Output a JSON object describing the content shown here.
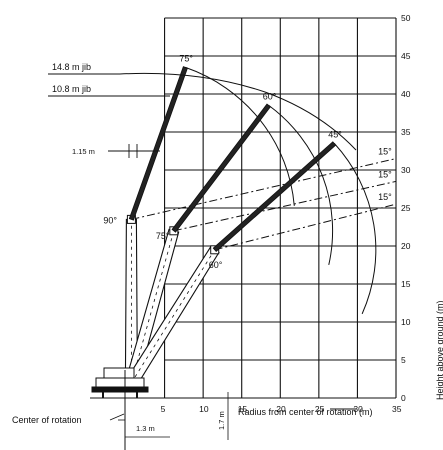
{
  "chart_data": {
    "type": "diagram",
    "title": "",
    "x_axis": {
      "label": "Radius from center of rotation (m)",
      "ticks": [
        "5",
        "10",
        "15",
        "20",
        "25",
        "30",
        "35"
      ],
      "range": [
        0,
        35
      ]
    },
    "y_axis": {
      "label": "Height above ground (m)",
      "ticks": [
        "0",
        "5",
        "10",
        "15",
        "20",
        "25",
        "30",
        "35",
        "40",
        "45",
        "50"
      ],
      "range": [
        0,
        50
      ]
    },
    "boom_pivot": {
      "x": 0.7,
      "y": 2.0
    },
    "main_boom_tips": [
      {
        "label": "90°",
        "x": 0.7,
        "y": 23.5
      },
      {
        "label": "75°",
        "x": 6.2,
        "y": 22.0
      },
      {
        "label": "60°",
        "x": 11.5,
        "y": 19.5
      }
    ],
    "jib_angle_labels": [
      "75°",
      "60°",
      "45°"
    ],
    "jib_tips": [
      {
        "x": 7.7,
        "y": 43.5
      },
      {
        "x": 18.5,
        "y": 38.5
      },
      {
        "x": 27.0,
        "y": 33.5
      }
    ],
    "offset_lines": [
      {
        "label": "15°",
        "from": {
          "x": 0.7,
          "y": 23.5
        },
        "to": {
          "x": 35,
          "y": 31.5
        }
      },
      {
        "label": "15°",
        "from": {
          "x": 6.2,
          "y": 22.0
        },
        "to": {
          "x": 35,
          "y": 28.5
        }
      },
      {
        "label": "15°",
        "from": {
          "x": 11.5,
          "y": 19.5
        },
        "to": {
          "x": 35,
          "y": 25.5
        }
      }
    ],
    "annotations": {
      "jib_148": "14.8 m jib",
      "jib_108": "10.8 m jib",
      "offset_115": "1.15 m",
      "offset_13": "1.3 m",
      "height_offset": "1.7 m",
      "center_label": "Center of rotation"
    }
  },
  "colors": {
    "ink": "#111111",
    "boom_fill": "#ffffff",
    "jib": "#222222"
  }
}
